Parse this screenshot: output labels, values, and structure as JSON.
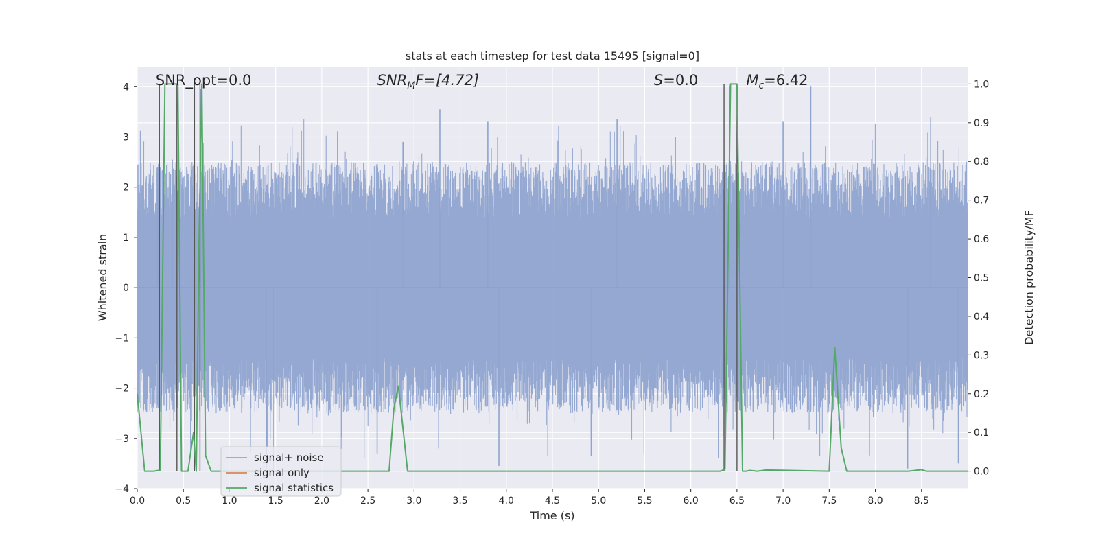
{
  "chart_data": {
    "type": "line",
    "title": "stats at each timestep for test data 15495 [signal=0]",
    "xlabel": "Time (s)",
    "ylabel": "Whitened strain",
    "ylabel_right": "Detection probability/MF",
    "xlim": [
      0.0,
      9.0
    ],
    "ylim": [
      -4.0,
      4.4
    ],
    "ylim_right": [
      -0.045,
      1.045
    ],
    "x_ticks": [
      "0.0",
      "0.5",
      "1.0",
      "1.5",
      "2.0",
      "2.5",
      "3.0",
      "3.5",
      "4.0",
      "4.5",
      "5.0",
      "5.5",
      "6.0",
      "6.5",
      "7.0",
      "7.5",
      "8.0",
      "8.5"
    ],
    "y_ticks": [
      "4",
      "3",
      "2",
      "1",
      "0",
      "−1",
      "−2",
      "−3",
      "−4"
    ],
    "y_ticks_right": [
      "1.0",
      "0.9",
      "0.8",
      "0.7",
      "0.6",
      "0.5",
      "0.4",
      "0.3",
      "0.2",
      "0.1",
      "0.0"
    ],
    "grid": true,
    "legend_position": "lower-left",
    "annotations": {
      "snr_opt": "SNR_opt=0.0",
      "snr_mf_prefix": "SNR",
      "snr_mf_sub": "M",
      "snr_mf_suffix": "F=[4.72]",
      "s_var": "S",
      "s_value": "=0.0",
      "mc_var": "M",
      "mc_sub": "c",
      "mc_value": "=6.42"
    },
    "series": [
      {
        "name": "signal+ noise",
        "color": "#8fa4cf",
        "kind": "noise",
        "envelope_upper_typical": 2.0,
        "envelope_lower_typical": -2.0,
        "peaks": [
          [
            0.22,
            2.4
          ],
          [
            0.38,
            2.55
          ],
          [
            0.69,
            3.95
          ],
          [
            2.88,
            2.9
          ],
          [
            3.28,
            3.55
          ],
          [
            3.8,
            3.3
          ],
          [
            5.2,
            3.35
          ],
          [
            6.42,
            4.0
          ],
          [
            7.0,
            3.3
          ],
          [
            7.3,
            4.0
          ],
          [
            8.6,
            3.4
          ]
        ],
        "troughs": [
          [
            1.4,
            -3.6
          ],
          [
            1.48,
            -3.7
          ],
          [
            2.6,
            -3.3
          ],
          [
            3.92,
            -3.55
          ],
          [
            4.92,
            -3.35
          ],
          [
            8.35,
            -3.6
          ],
          [
            8.9,
            -3.5
          ]
        ]
      },
      {
        "name": "signal only",
        "color": "#dd8452",
        "kind": "flat",
        "value": 0.0
      },
      {
        "name": "signal statistics",
        "color": "#55a868",
        "kind": "probability",
        "x": [
          0.0,
          0.04,
          0.08,
          0.14,
          0.18,
          0.25,
          0.3,
          0.35,
          0.41,
          0.44,
          0.48,
          0.55,
          0.61,
          0.64,
          0.67,
          0.7,
          0.74,
          0.8,
          0.87,
          2.6,
          2.73,
          2.78,
          2.83,
          2.93,
          6.32,
          6.37,
          6.43,
          6.5,
          6.56,
          6.6,
          6.64,
          6.72,
          6.82,
          7.5,
          7.56,
          7.63,
          7.69,
          7.8,
          8.36,
          8.5,
          8.55,
          9.0
        ],
        "y": [
          0.2,
          0.1,
          0.0,
          0.0,
          0.0,
          0.003,
          1.0,
          1.0,
          1.0,
          1.0,
          0.0,
          0.0,
          0.1,
          0.0,
          0.6,
          1.0,
          0.04,
          0.0,
          0.0,
          0.0,
          0.0,
          0.16,
          0.22,
          0.0,
          0.0,
          0.005,
          1.0,
          1.0,
          0.0,
          0.0,
          0.002,
          0.0,
          0.003,
          0.0,
          0.32,
          0.06,
          0.0,
          0.0,
          0.0,
          0.004,
          0.0,
          0.0
        ]
      }
    ],
    "vertical_markers": [
      0.24,
      0.43,
      0.62,
      0.68,
      6.36,
      6.5
    ]
  }
}
